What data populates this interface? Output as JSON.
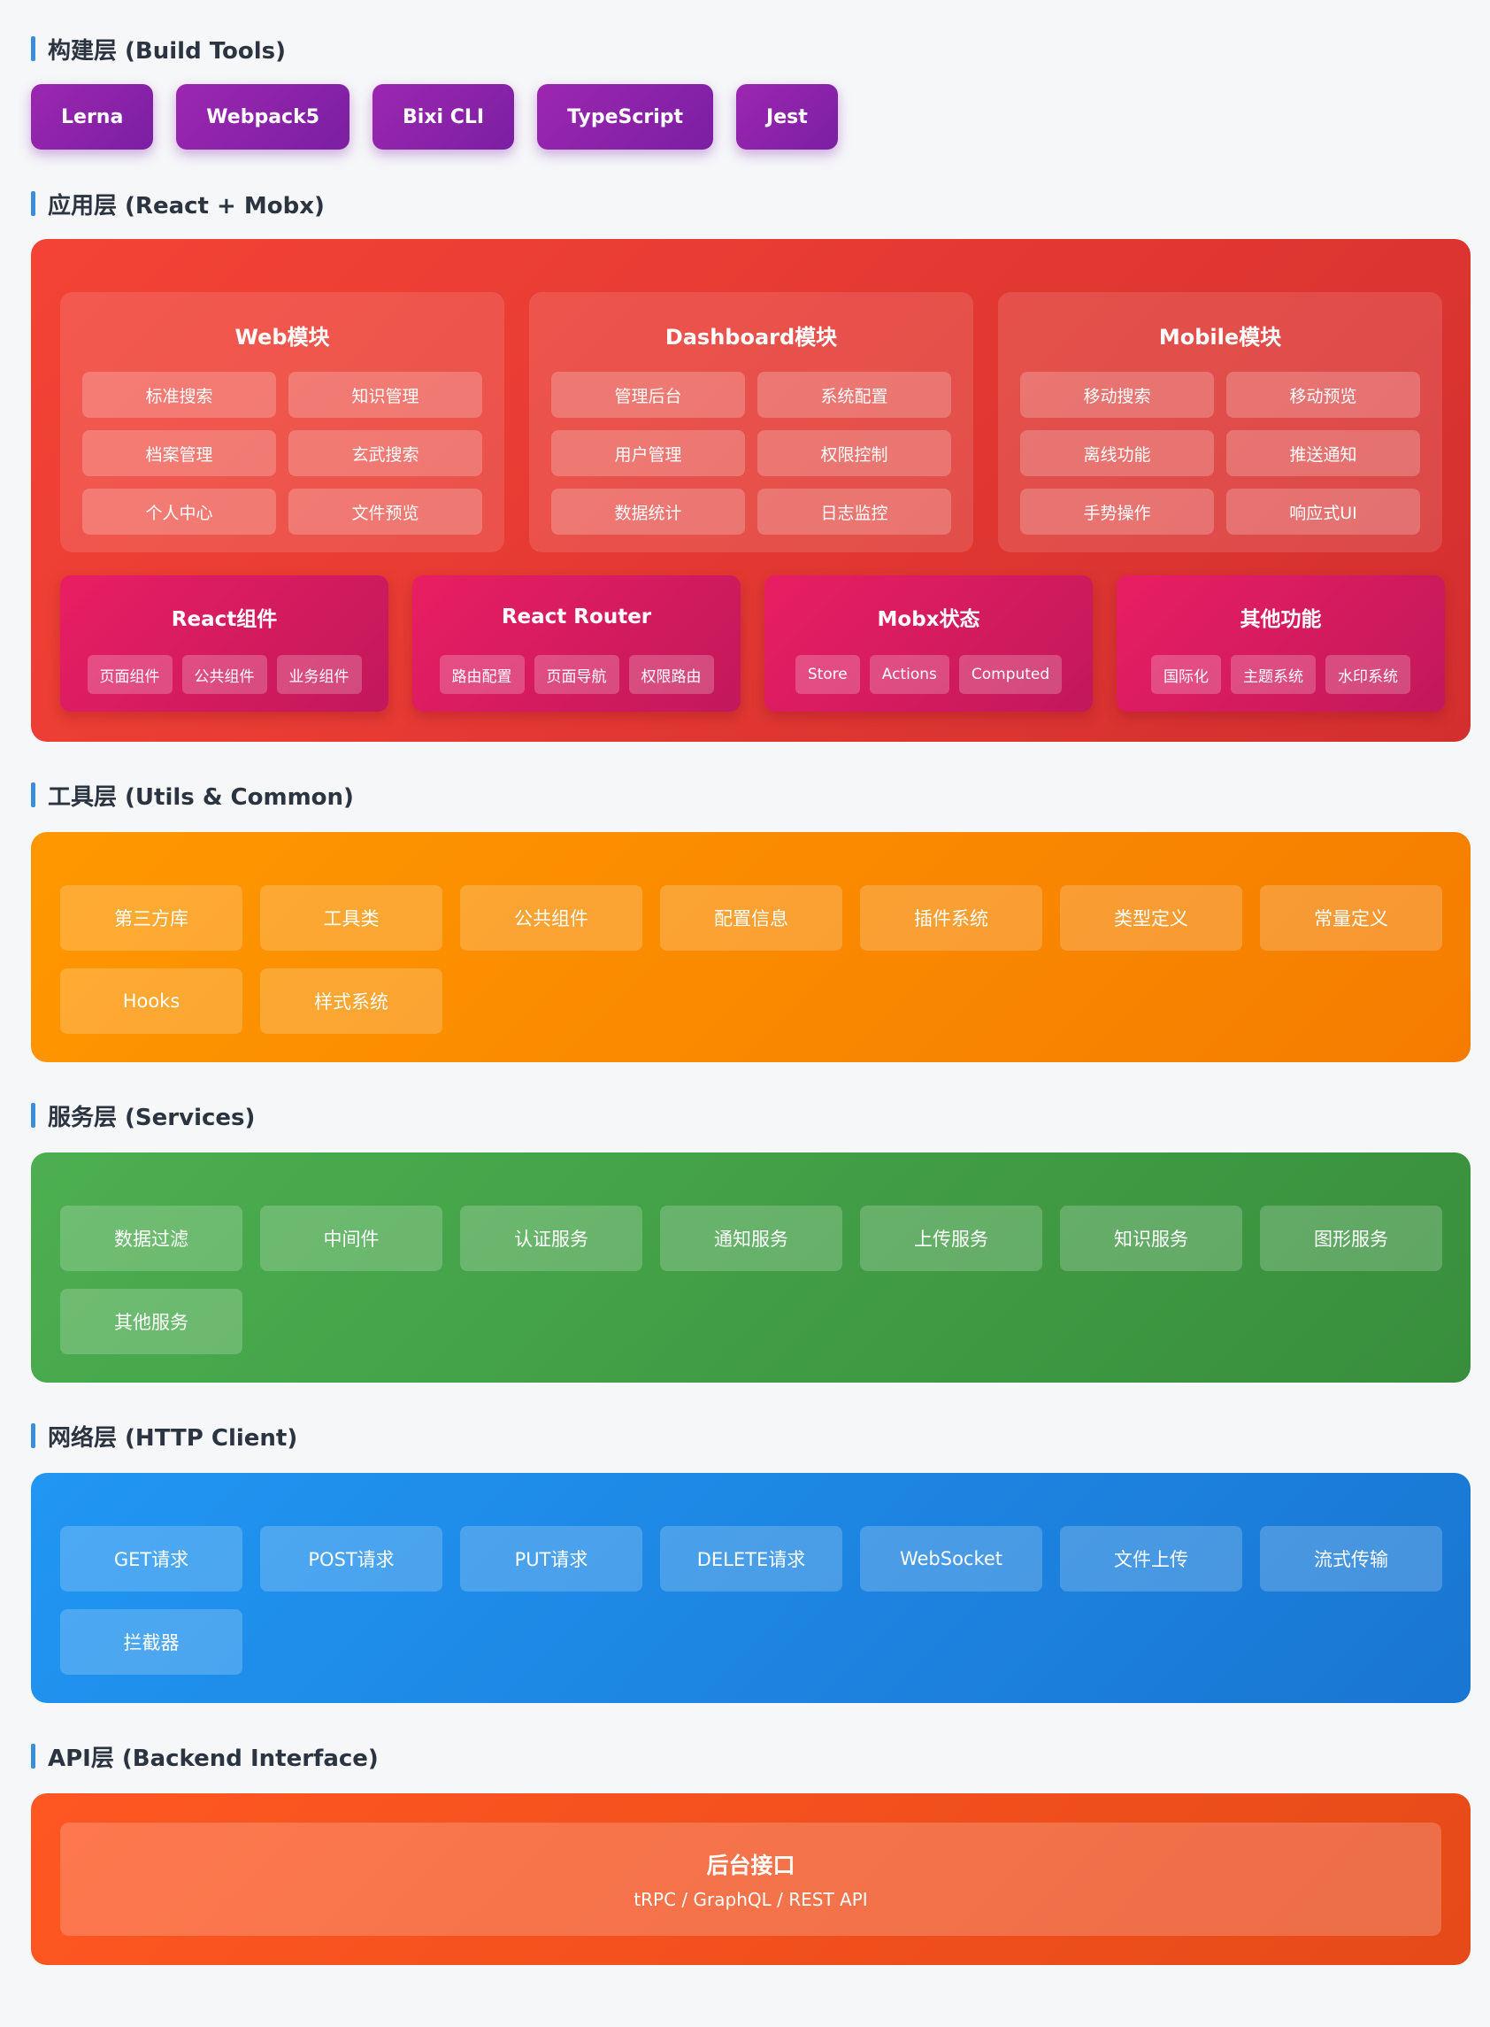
{
  "build": {
    "title": "构建层 (Build Tools)",
    "tools": [
      "Lerna",
      "Webpack5",
      "Bixi CLI",
      "TypeScript",
      "Jest"
    ]
  },
  "app": {
    "title": "应用层 (React + Mobx)",
    "modules": [
      {
        "name": "Web模块",
        "items": [
          "标准搜索",
          "知识管理",
          "档案管理",
          "玄武搜索",
          "个人中心",
          "文件预览"
        ]
      },
      {
        "name": "Dashboard模块",
        "items": [
          "管理后台",
          "系统配置",
          "用户管理",
          "权限控制",
          "数据统计",
          "日志监控"
        ]
      },
      {
        "name": "Mobile模块",
        "items": [
          "移动搜索",
          "移动预览",
          "离线功能",
          "推送通知",
          "手势操作",
          "响应式UI"
        ]
      }
    ],
    "subsystems": [
      {
        "name": "React组件",
        "tags": [
          "页面组件",
          "公共组件",
          "业务组件"
        ]
      },
      {
        "name": "React Router",
        "tags": [
          "路由配置",
          "页面导航",
          "权限路由"
        ]
      },
      {
        "name": "Mobx状态",
        "tags": [
          "Store",
          "Actions",
          "Computed"
        ]
      },
      {
        "name": "其他功能",
        "tags": [
          "国际化",
          "主题系统",
          "水印系统"
        ]
      }
    ]
  },
  "utils": {
    "title": "工具层 (Utils & Common)",
    "items": [
      "第三方库",
      "工具类",
      "公共组件",
      "配置信息",
      "插件系统",
      "类型定义",
      "常量定义",
      "Hooks",
      "样式系统"
    ]
  },
  "services": {
    "title": "服务层 (Services)",
    "items": [
      "数据过滤",
      "中间件",
      "认证服务",
      "通知服务",
      "上传服务",
      "知识服务",
      "图形服务",
      "其他服务"
    ]
  },
  "network": {
    "title": "网络层 (HTTP Client)",
    "items": [
      "GET请求",
      "POST请求",
      "PUT请求",
      "DELETE请求",
      "WebSocket",
      "文件上传",
      "流式传输",
      "拦截器"
    ]
  },
  "api": {
    "title": "API层 (Backend Interface)",
    "box_title": "后台接口",
    "box_subtitle": "tRPC / GraphQL / REST API"
  },
  "colors": {
    "build": "#9c27b0",
    "app": "#f44336",
    "subsystem": "#e91e63",
    "utils": "#ff9800",
    "services": "#4caf50",
    "network": "#2196f3",
    "api": "#ff5722",
    "accent": "#3b8fd8"
  }
}
